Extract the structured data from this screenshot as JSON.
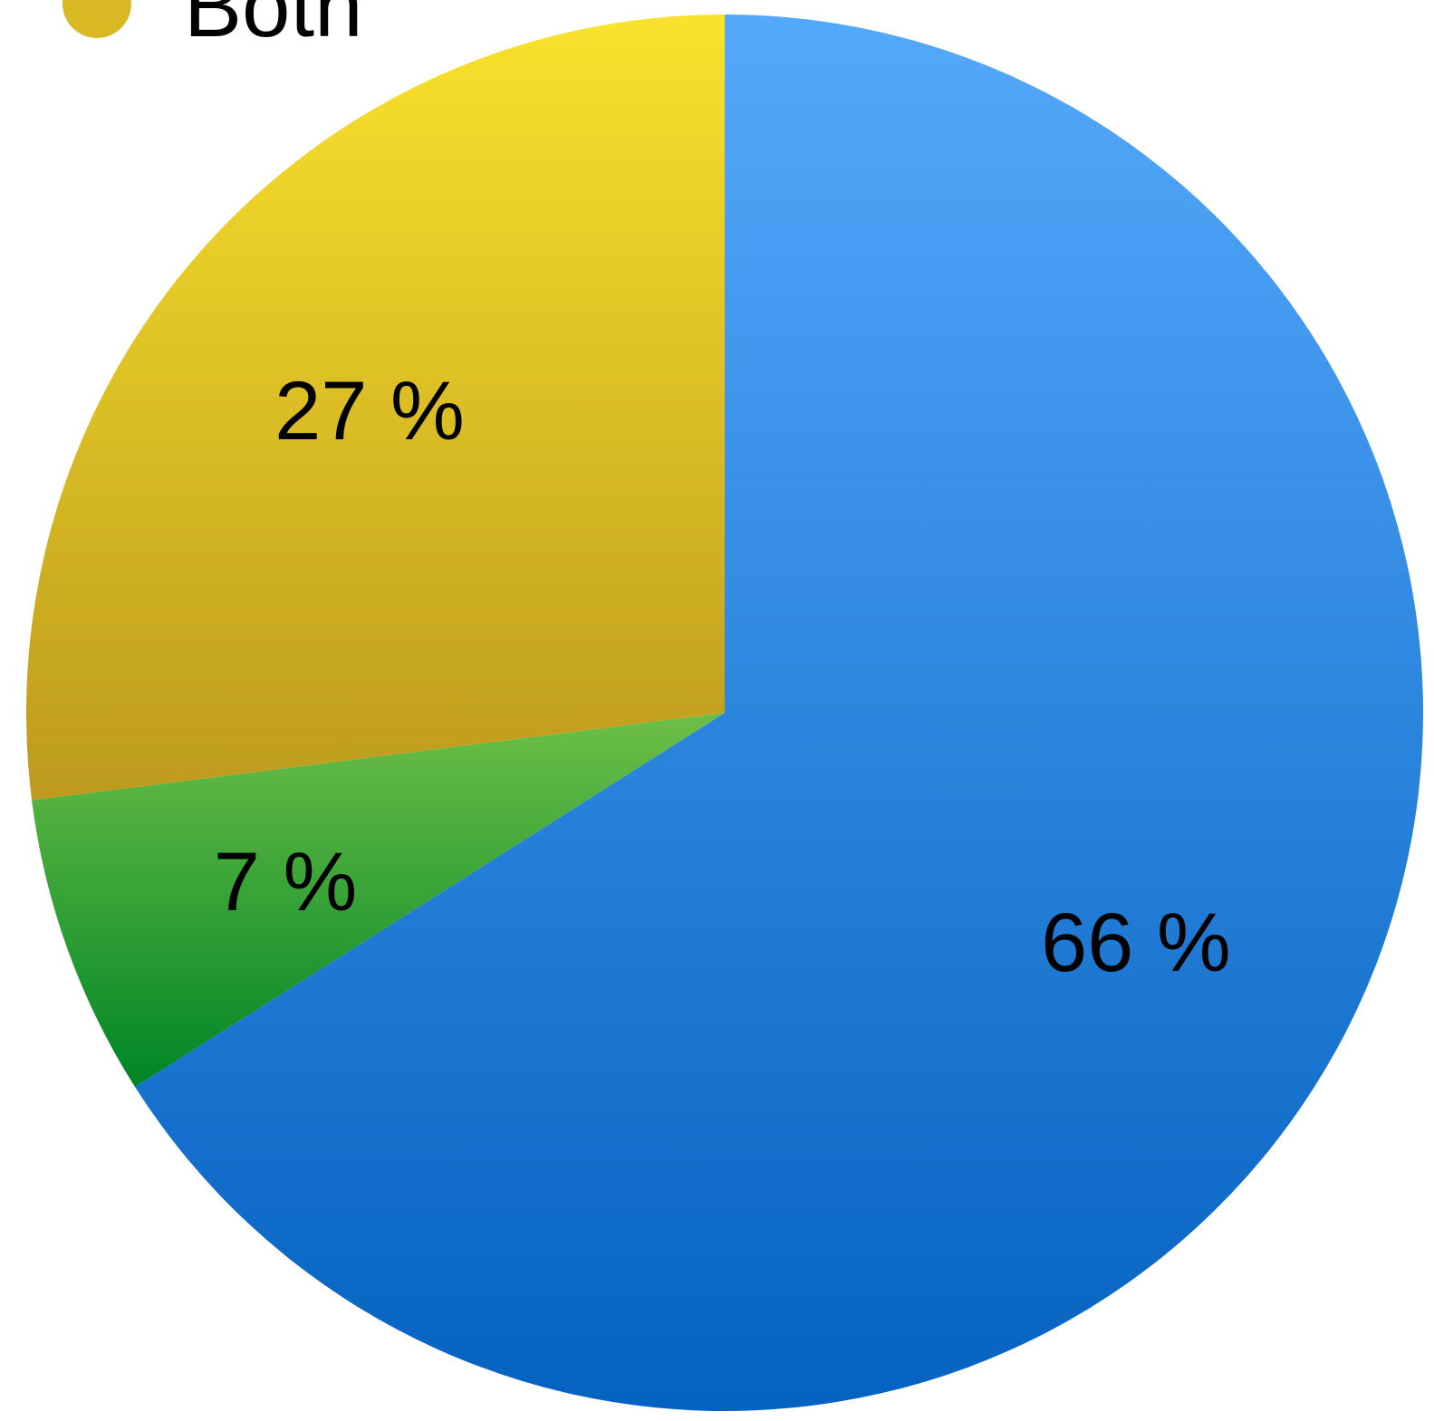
{
  "chart_data": {
    "type": "pie",
    "slices": [
      {
        "label": "",
        "value": 66,
        "value_label": "66 %",
        "color_top": "#55a9fb",
        "color_bottom": "#0462c0"
      },
      {
        "label": "",
        "value": 7,
        "value_label": "7 %",
        "color_top": "#6dbf47",
        "color_bottom": "#008526"
      },
      {
        "label": "Both",
        "value": 27,
        "value_label": "27 %",
        "color_top": "#fae22c",
        "color_bottom": "#bd9a1d"
      }
    ],
    "legend": {
      "placement": "top-left",
      "entries": [
        {
          "label": "Both",
          "color": "#d8b924"
        }
      ]
    },
    "start_angle": "12 o'clock",
    "direction": "clockwise"
  }
}
